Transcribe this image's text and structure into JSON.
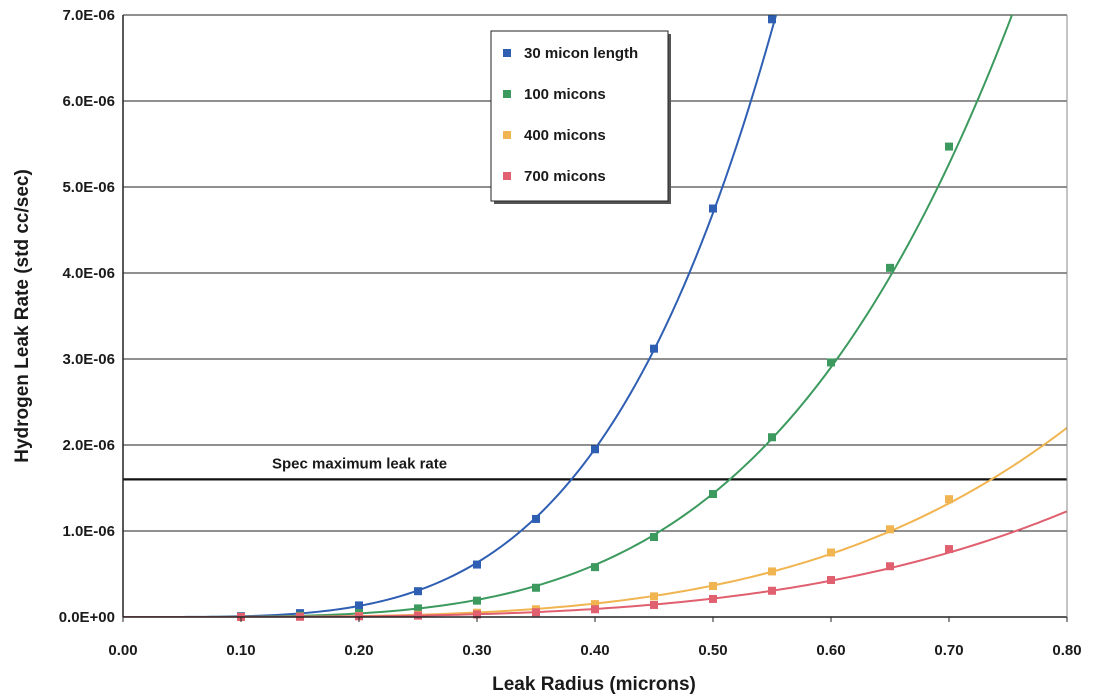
{
  "chart_data": {
    "type": "line",
    "xlabel": "Leak Radius (microns)",
    "ylabel": "Hydrogen Leak Rate (std cc/sec)",
    "xlim": [
      0.0,
      0.8
    ],
    "ylim": [
      0.0,
      7e-06
    ],
    "x_ticks": [
      "0.00",
      "0.10",
      "0.20",
      "0.30",
      "0.40",
      "0.50",
      "0.60",
      "0.70",
      "0.80"
    ],
    "y_ticks": [
      "0.0E+00",
      "1.0E-06",
      "2.0E-06",
      "3.0E-06",
      "4.0E-06",
      "5.0E-06",
      "6.0E-06",
      "7.0E-06"
    ],
    "grid": "horizontal",
    "legend_position": "top-center",
    "series": [
      {
        "name": "30 micon length",
        "color": "#2f5fb3",
        "x": [
          0.1,
          0.15,
          0.2,
          0.25,
          0.3,
          0.35,
          0.4,
          0.45,
          0.5,
          0.55
        ],
        "values": [
          1e-08,
          4.5e-08,
          1.35e-07,
          3e-07,
          6.1e-07,
          1.14e-06,
          1.95e-06,
          3.12e-06,
          4.75e-06,
          6.95e-06
        ]
      },
      {
        "name": "100 micons",
        "color": "#3c9a5f",
        "x": [
          0.1,
          0.15,
          0.2,
          0.25,
          0.3,
          0.35,
          0.4,
          0.45,
          0.5,
          0.55,
          0.6,
          0.65,
          0.7
        ],
        "values": [
          3e-09,
          1.5e-08,
          4.5e-08,
          1e-07,
          1.9e-07,
          3.4e-07,
          5.8e-07,
          9.3e-07,
          1.43e-06,
          2.09e-06,
          2.96e-06,
          4.06e-06,
          5.47e-06
        ]
      },
      {
        "name": "400 micons",
        "color": "#f0b450",
        "x": [
          0.1,
          0.15,
          0.2,
          0.25,
          0.3,
          0.35,
          0.4,
          0.45,
          0.5,
          0.55,
          0.6,
          0.65,
          0.7
        ],
        "values": [
          1e-09,
          4e-09,
          1.2e-08,
          2.6e-08,
          5e-08,
          9e-08,
          1.5e-07,
          2.4e-07,
          3.6e-07,
          5.3e-07,
          7.5e-07,
          1.02e-06,
          1.37e-06
        ]
      },
      {
        "name": "700 micons",
        "color": "#e06070",
        "x": [
          0.1,
          0.15,
          0.2,
          0.25,
          0.3,
          0.35,
          0.4,
          0.45,
          0.5,
          0.55,
          0.6,
          0.65,
          0.7
        ],
        "values": [
          1e-09,
          3e-09,
          8e-09,
          1.6e-08,
          3e-08,
          5.5e-08,
          9e-08,
          1.4e-07,
          2.1e-07,
          3.05e-07,
          4.3e-07,
          5.9e-07,
          7.9e-07
        ]
      }
    ],
    "annotations": [
      {
        "text": "Spec maximum leak rate",
        "y": 1.6e-06
      }
    ]
  }
}
